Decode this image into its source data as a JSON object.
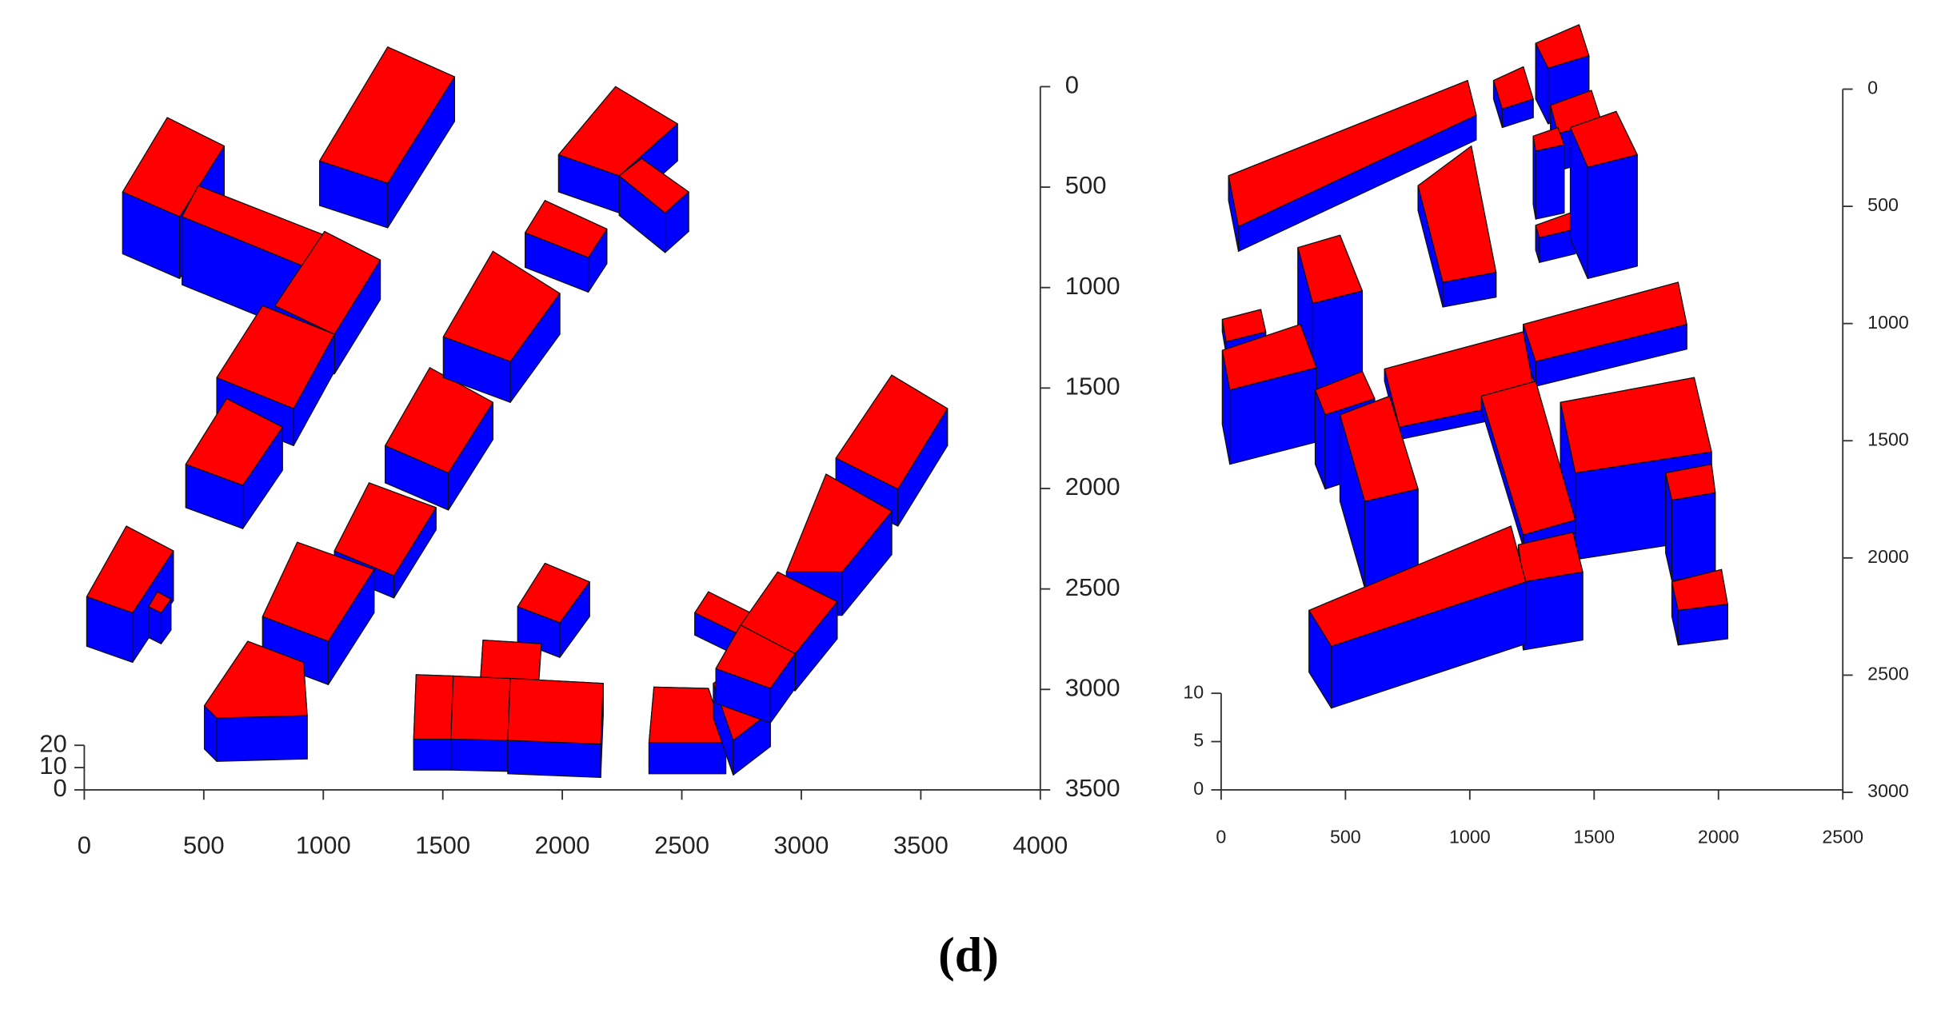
{
  "figure_label": "(d)",
  "chart_data": [
    {
      "type": "bar3d",
      "xlim": [
        0,
        4000
      ],
      "xticks": [
        0,
        500,
        1000,
        1500,
        2000,
        2500,
        3000,
        3500,
        4000
      ],
      "ylim": [
        0,
        3500
      ],
      "yticks": [
        0,
        500,
        1000,
        1500,
        2000,
        2500,
        3000,
        3500
      ],
      "zlim": [
        0,
        20
      ],
      "zticks": [
        0,
        10,
        20
      ]
    },
    {
      "type": "bar3d",
      "xlim": [
        0,
        2500
      ],
      "xticks": [
        0,
        500,
        1000,
        1500,
        2000,
        2500
      ],
      "ylim": [
        0,
        3000
      ],
      "yticks": [
        0,
        500,
        1000,
        1500,
        2000,
        2500,
        3000
      ],
      "zlim": [
        0,
        10
      ],
      "zticks": [
        0,
        5,
        10
      ]
    }
  ]
}
